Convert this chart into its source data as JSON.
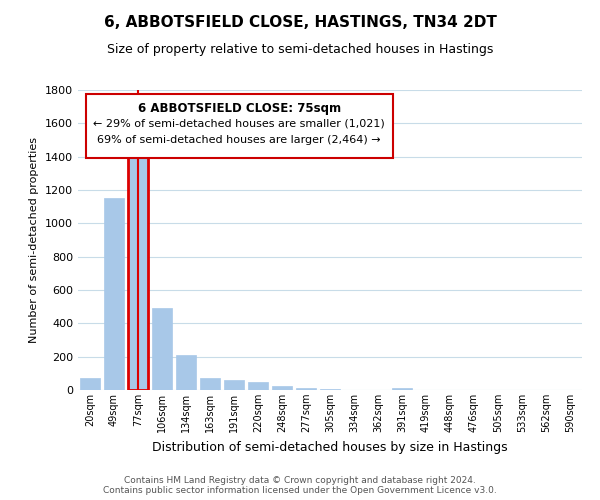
{
  "title": "6, ABBOTSFIELD CLOSE, HASTINGS, TN34 2DT",
  "subtitle": "Size of property relative to semi-detached houses in Hastings",
  "xlabel": "Distribution of semi-detached houses by size in Hastings",
  "ylabel": "Number of semi-detached properties",
  "bar_labels": [
    "20sqm",
    "49sqm",
    "77sqm",
    "106sqm",
    "134sqm",
    "163sqm",
    "191sqm",
    "220sqm",
    "248sqm",
    "277sqm",
    "305sqm",
    "334sqm",
    "362sqm",
    "391sqm",
    "419sqm",
    "448sqm",
    "476sqm",
    "505sqm",
    "533sqm",
    "562sqm",
    "590sqm"
  ],
  "bar_values": [
    75,
    1150,
    1420,
    490,
    210,
    75,
    60,
    48,
    25,
    15,
    8,
    3,
    2,
    12,
    0,
    0,
    0,
    0,
    0,
    0,
    0
  ],
  "bar_color": "#a8c8e8",
  "highlight_bar_index": 2,
  "highlight_color": "#dd0000",
  "annotation_line1": "6 ABBOTSFIELD CLOSE: 75sqm",
  "annotation_line2": "← 29% of semi-detached houses are smaller (1,021)",
  "annotation_line3": "69% of semi-detached houses are larger (2,464) →",
  "ylim": [
    0,
    1800
  ],
  "yticks": [
    0,
    200,
    400,
    600,
    800,
    1000,
    1200,
    1400,
    1600,
    1800
  ],
  "footer_line1": "Contains HM Land Registry data © Crown copyright and database right 2024.",
  "footer_line2": "Contains public sector information licensed under the Open Government Licence v3.0.",
  "bg_color": "#ffffff",
  "grid_color": "#c8dce8",
  "annotation_box_color": "#ffffff",
  "annotation_box_edge": "#cc0000"
}
